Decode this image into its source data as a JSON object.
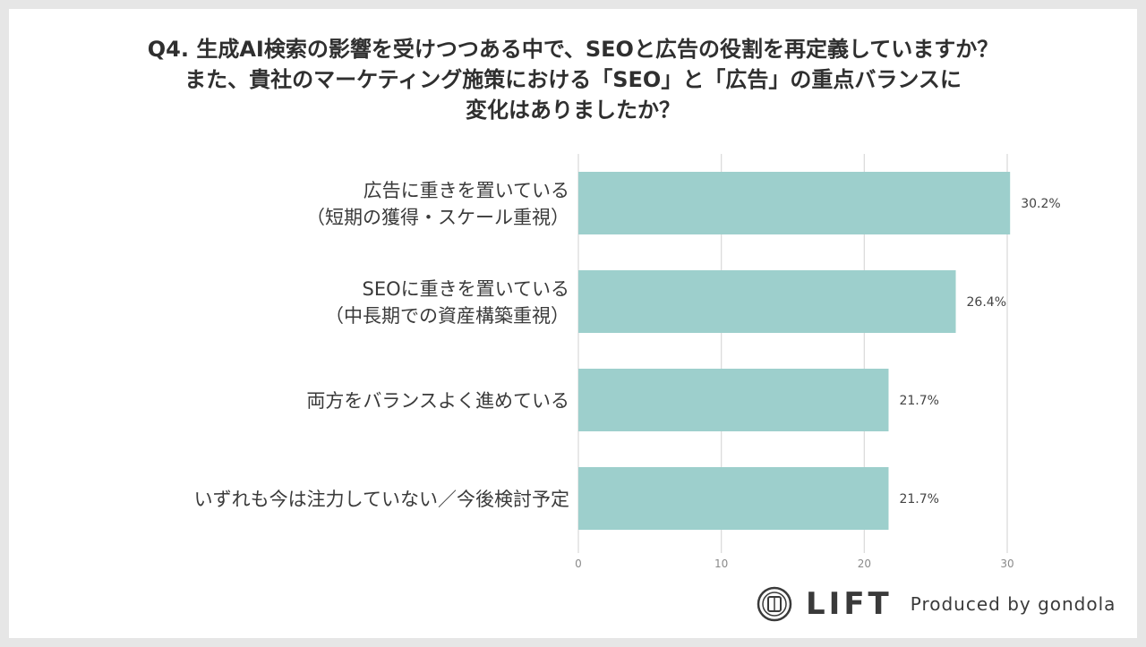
{
  "chart_data": {
    "type": "bar",
    "orientation": "horizontal",
    "title_lines": [
      "Q4. 生成AI検索の影響を受けつつある中で、SEOと広告の役割を再定義していますか？",
      "また、貴社のマーケティング施策における「SEO」と「広告」の重点バランスに",
      "変化はありましたか？"
    ],
    "categories": [
      [
        "広告に重きを置いている",
        "（短期の獲得・スケール重視）"
      ],
      [
        "SEOに重きを置いている",
        "（中長期での資産構築重視）"
      ],
      [
        "両方をバランスよく進めている"
      ],
      [
        "いずれも今は注力していない／今後検討予定"
      ]
    ],
    "values": [
      30.2,
      26.4,
      21.7,
      21.7
    ],
    "value_labels": [
      "30.2%",
      "26.4%",
      "21.7%",
      "21.7%"
    ],
    "x_ticks": [
      0,
      10,
      20,
      30
    ],
    "xlim": [
      0,
      30
    ],
    "grid": true,
    "bar_color": "#9dcfcc",
    "grid_color": "#d9d9d9"
  },
  "footer": {
    "brand": "LIFT",
    "produced_by": "Produced by gondola",
    "logo_icon": "lift-logo-icon"
  }
}
